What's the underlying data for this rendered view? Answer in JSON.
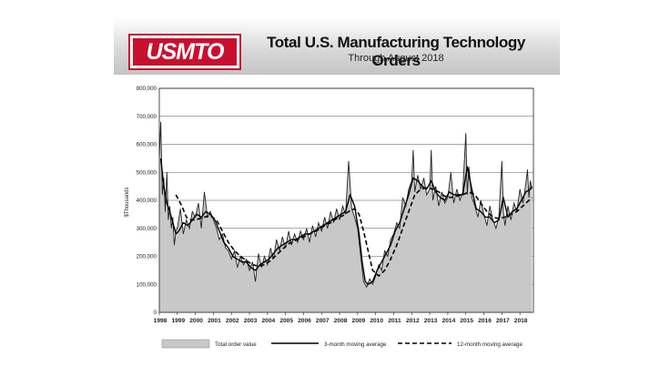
{
  "logo_text": "USMTO",
  "chart_data": {
    "type": "area",
    "title": "Total U.S. Manufacturing Technology Orders",
    "subtitle": "Through August 2018",
    "ylabel": "$Thousands",
    "xlabel": "",
    "ylim": [
      0,
      800000
    ],
    "xlim": [
      1998,
      2018.75
    ],
    "grid": true,
    "y_ticks": [
      "0",
      "100,000",
      "200,000",
      "300,000",
      "400,000",
      "500,000",
      "600,000",
      "700,000",
      "800,000"
    ],
    "x_ticks": [
      "1998",
      "1999",
      "2000",
      "2001",
      "2002",
      "2003",
      "2004",
      "2005",
      "2006",
      "2007",
      "2008",
      "2009",
      "2010",
      "2011",
      "2012",
      "2013",
      "2014",
      "2015",
      "2016",
      "2017",
      "2018"
    ],
    "legend": {
      "placement": "bottom"
    },
    "series": [
      {
        "name": "Total order value",
        "style": "area",
        "color": "#c8c8c8",
        "points": [
          [
            1998.0,
            560000
          ],
          [
            1998.08,
            680000
          ],
          [
            1998.17,
            420000
          ],
          [
            1998.25,
            480000
          ],
          [
            1998.33,
            360000
          ],
          [
            1998.42,
            500000
          ],
          [
            1998.5,
            330000
          ],
          [
            1998.58,
            380000
          ],
          [
            1998.67,
            300000
          ],
          [
            1998.75,
            340000
          ],
          [
            1998.83,
            240000
          ],
          [
            1998.92,
            290000
          ],
          [
            1999.0,
            300000
          ],
          [
            1999.17,
            370000
          ],
          [
            1999.33,
            280000
          ],
          [
            1999.5,
            330000
          ],
          [
            1999.67,
            300000
          ],
          [
            1999.83,
            360000
          ],
          [
            2000.0,
            340000
          ],
          [
            2000.17,
            390000
          ],
          [
            2000.33,
            300000
          ],
          [
            2000.5,
            430000
          ],
          [
            2000.67,
            340000
          ],
          [
            2000.83,
            360000
          ],
          [
            2001.0,
            330000
          ],
          [
            2001.17,
            300000
          ],
          [
            2001.33,
            260000
          ],
          [
            2001.5,
            280000
          ],
          [
            2001.67,
            230000
          ],
          [
            2001.83,
            220000
          ],
          [
            2002.0,
            190000
          ],
          [
            2002.17,
            220000
          ],
          [
            2002.33,
            160000
          ],
          [
            2002.5,
            200000
          ],
          [
            2002.67,
            170000
          ],
          [
            2002.83,
            190000
          ],
          [
            2003.0,
            150000
          ],
          [
            2003.17,
            180000
          ],
          [
            2003.33,
            110000
          ],
          [
            2003.5,
            210000
          ],
          [
            2003.67,
            160000
          ],
          [
            2003.83,
            200000
          ],
          [
            2004.0,
            170000
          ],
          [
            2004.17,
            230000
          ],
          [
            2004.33,
            190000
          ],
          [
            2004.5,
            260000
          ],
          [
            2004.67,
            220000
          ],
          [
            2004.83,
            270000
          ],
          [
            2005.0,
            230000
          ],
          [
            2005.17,
            290000
          ],
          [
            2005.33,
            240000
          ],
          [
            2005.5,
            280000
          ],
          [
            2005.67,
            250000
          ],
          [
            2005.83,
            290000
          ],
          [
            2006.0,
            260000
          ],
          [
            2006.17,
            300000
          ],
          [
            2006.33,
            250000
          ],
          [
            2006.5,
            310000
          ],
          [
            2006.67,
            270000
          ],
          [
            2006.83,
            320000
          ],
          [
            2007.0,
            290000
          ],
          [
            2007.17,
            340000
          ],
          [
            2007.33,
            300000
          ],
          [
            2007.5,
            360000
          ],
          [
            2007.67,
            320000
          ],
          [
            2007.83,
            370000
          ],
          [
            2008.0,
            330000
          ],
          [
            2008.17,
            380000
          ],
          [
            2008.33,
            350000
          ],
          [
            2008.5,
            540000
          ],
          [
            2008.67,
            370000
          ],
          [
            2008.83,
            340000
          ],
          [
            2009.0,
            300000
          ],
          [
            2009.17,
            200000
          ],
          [
            2009.33,
            110000
          ],
          [
            2009.5,
            90000
          ],
          [
            2009.67,
            120000
          ],
          [
            2009.83,
            100000
          ],
          [
            2010.0,
            130000
          ],
          [
            2010.17,
            170000
          ],
          [
            2010.33,
            150000
          ],
          [
            2010.5,
            220000
          ],
          [
            2010.67,
            200000
          ],
          [
            2010.83,
            260000
          ],
          [
            2011.0,
            280000
          ],
          [
            2011.17,
            320000
          ],
          [
            2011.33,
            300000
          ],
          [
            2011.5,
            410000
          ],
          [
            2011.67,
            380000
          ],
          [
            2011.83,
            440000
          ],
          [
            2012.0,
            470000
          ],
          [
            2012.08,
            580000
          ],
          [
            2012.17,
            430000
          ],
          [
            2012.33,
            490000
          ],
          [
            2012.5,
            440000
          ],
          [
            2012.67,
            480000
          ],
          [
            2012.83,
            420000
          ],
          [
            2013.0,
            440000
          ],
          [
            2013.08,
            580000
          ],
          [
            2013.17,
            400000
          ],
          [
            2013.33,
            450000
          ],
          [
            2013.5,
            380000
          ],
          [
            2013.67,
            430000
          ],
          [
            2013.83,
            390000
          ],
          [
            2014.0,
            410000
          ],
          [
            2014.17,
            500000
          ],
          [
            2014.33,
            390000
          ],
          [
            2014.5,
            440000
          ],
          [
            2014.67,
            400000
          ],
          [
            2014.83,
            430000
          ],
          [
            2015.0,
            640000
          ],
          [
            2015.08,
            420000
          ],
          [
            2015.17,
            520000
          ],
          [
            2015.33,
            410000
          ],
          [
            2015.5,
            380000
          ],
          [
            2015.67,
            340000
          ],
          [
            2015.83,
            400000
          ],
          [
            2016.0,
            350000
          ],
          [
            2016.17,
            310000
          ],
          [
            2016.33,
            380000
          ],
          [
            2016.5,
            330000
          ],
          [
            2016.67,
            300000
          ],
          [
            2016.83,
            340000
          ],
          [
            2017.0,
            540000
          ],
          [
            2017.08,
            360000
          ],
          [
            2017.17,
            310000
          ],
          [
            2017.33,
            380000
          ],
          [
            2017.5,
            330000
          ],
          [
            2017.67,
            390000
          ],
          [
            2017.83,
            360000
          ],
          [
            2018.0,
            440000
          ],
          [
            2018.17,
            390000
          ],
          [
            2018.33,
            460000
          ],
          [
            2018.42,
            510000
          ],
          [
            2018.5,
            410000
          ],
          [
            2018.58,
            470000
          ],
          [
            2018.67,
            440000
          ]
        ]
      },
      {
        "name": "3-month moving average",
        "style": "solid",
        "color": "#000000",
        "points": [
          [
            1998.08,
            550000
          ],
          [
            1998.25,
            450000
          ],
          [
            1998.42,
            390000
          ],
          [
            1998.58,
            360000
          ],
          [
            1998.75,
            320000
          ],
          [
            1998.92,
            280000
          ],
          [
            1999.08,
            290000
          ],
          [
            1999.33,
            320000
          ],
          [
            1999.58,
            310000
          ],
          [
            1999.83,
            330000
          ],
          [
            2000.08,
            350000
          ],
          [
            2000.33,
            340000
          ],
          [
            2000.58,
            360000
          ],
          [
            2000.83,
            350000
          ],
          [
            2001.08,
            330000
          ],
          [
            2001.33,
            290000
          ],
          [
            2001.58,
            250000
          ],
          [
            2001.83,
            230000
          ],
          [
            2002.08,
            200000
          ],
          [
            2002.33,
            190000
          ],
          [
            2002.58,
            180000
          ],
          [
            2002.83,
            180000
          ],
          [
            2003.08,
            160000
          ],
          [
            2003.33,
            150000
          ],
          [
            2003.58,
            170000
          ],
          [
            2003.83,
            180000
          ],
          [
            2004.08,
            190000
          ],
          [
            2004.33,
            210000
          ],
          [
            2004.58,
            230000
          ],
          [
            2004.83,
            240000
          ],
          [
            2005.08,
            250000
          ],
          [
            2005.33,
            260000
          ],
          [
            2005.58,
            260000
          ],
          [
            2005.83,
            270000
          ],
          [
            2006.08,
            280000
          ],
          [
            2006.33,
            280000
          ],
          [
            2006.58,
            290000
          ],
          [
            2006.83,
            300000
          ],
          [
            2007.08,
            310000
          ],
          [
            2007.33,
            320000
          ],
          [
            2007.58,
            330000
          ],
          [
            2007.83,
            340000
          ],
          [
            2008.08,
            350000
          ],
          [
            2008.33,
            360000
          ],
          [
            2008.58,
            420000
          ],
          [
            2008.83,
            380000
          ],
          [
            2009.08,
            280000
          ],
          [
            2009.25,
            180000
          ],
          [
            2009.42,
            110000
          ],
          [
            2009.58,
            100000
          ],
          [
            2009.83,
            110000
          ],
          [
            2010.08,
            150000
          ],
          [
            2010.33,
            180000
          ],
          [
            2010.58,
            210000
          ],
          [
            2010.83,
            240000
          ],
          [
            2011.08,
            290000
          ],
          [
            2011.33,
            320000
          ],
          [
            2011.58,
            370000
          ],
          [
            2011.83,
            420000
          ],
          [
            2012.08,
            480000
          ],
          [
            2012.33,
            470000
          ],
          [
            2012.58,
            450000
          ],
          [
            2012.83,
            440000
          ],
          [
            2013.08,
            470000
          ],
          [
            2013.33,
            430000
          ],
          [
            2013.58,
            410000
          ],
          [
            2013.83,
            400000
          ],
          [
            2014.08,
            430000
          ],
          [
            2014.33,
            420000
          ],
          [
            2014.58,
            420000
          ],
          [
            2014.83,
            420000
          ],
          [
            2015.08,
            520000
          ],
          [
            2015.33,
            440000
          ],
          [
            2015.58,
            370000
          ],
          [
            2015.83,
            360000
          ],
          [
            2016.08,
            340000
          ],
          [
            2016.33,
            340000
          ],
          [
            2016.58,
            320000
          ],
          [
            2016.83,
            330000
          ],
          [
            2017.08,
            410000
          ],
          [
            2017.33,
            340000
          ],
          [
            2017.58,
            360000
          ],
          [
            2017.83,
            370000
          ],
          [
            2018.08,
            400000
          ],
          [
            2018.33,
            430000
          ],
          [
            2018.58,
            440000
          ],
          [
            2018.67,
            450000
          ]
        ]
      },
      {
        "name": "12-month moving average",
        "style": "dashed",
        "color": "#000000",
        "points": [
          [
            1998.92,
            420000
          ],
          [
            1999.25,
            380000
          ],
          [
            1999.5,
            340000
          ],
          [
            1999.75,
            330000
          ],
          [
            2000.0,
            330000
          ],
          [
            2000.5,
            340000
          ],
          [
            2000.83,
            345000
          ],
          [
            2001.17,
            330000
          ],
          [
            2001.5,
            290000
          ],
          [
            2001.83,
            250000
          ],
          [
            2002.17,
            220000
          ],
          [
            2002.5,
            200000
          ],
          [
            2002.83,
            185000
          ],
          [
            2003.17,
            170000
          ],
          [
            2003.5,
            165000
          ],
          [
            2003.83,
            170000
          ],
          [
            2004.17,
            185000
          ],
          [
            2004.5,
            205000
          ],
          [
            2004.83,
            225000
          ],
          [
            2005.17,
            245000
          ],
          [
            2005.5,
            255000
          ],
          [
            2005.83,
            265000
          ],
          [
            2006.17,
            275000
          ],
          [
            2006.5,
            285000
          ],
          [
            2006.83,
            295000
          ],
          [
            2007.17,
            310000
          ],
          [
            2007.5,
            320000
          ],
          [
            2007.83,
            335000
          ],
          [
            2008.17,
            345000
          ],
          [
            2008.5,
            360000
          ],
          [
            2008.83,
            370000
          ],
          [
            2009.08,
            350000
          ],
          [
            2009.33,
            290000
          ],
          [
            2009.58,
            220000
          ],
          [
            2009.83,
            150000
          ],
          [
            2010.17,
            130000
          ],
          [
            2010.5,
            150000
          ],
          [
            2010.83,
            190000
          ],
          [
            2011.17,
            240000
          ],
          [
            2011.5,
            300000
          ],
          [
            2011.83,
            360000
          ],
          [
            2012.17,
            420000
          ],
          [
            2012.5,
            440000
          ],
          [
            2012.83,
            445000
          ],
          [
            2013.17,
            440000
          ],
          [
            2013.5,
            430000
          ],
          [
            2013.83,
            415000
          ],
          [
            2014.17,
            410000
          ],
          [
            2014.5,
            415000
          ],
          [
            2014.83,
            420000
          ],
          [
            2015.17,
            430000
          ],
          [
            2015.5,
            420000
          ],
          [
            2015.83,
            390000
          ],
          [
            2016.17,
            360000
          ],
          [
            2016.5,
            340000
          ],
          [
            2016.83,
            335000
          ],
          [
            2017.17,
            340000
          ],
          [
            2017.5,
            350000
          ],
          [
            2017.83,
            360000
          ],
          [
            2018.17,
            380000
          ],
          [
            2018.5,
            400000
          ],
          [
            2018.67,
            410000
          ]
        ]
      }
    ]
  }
}
